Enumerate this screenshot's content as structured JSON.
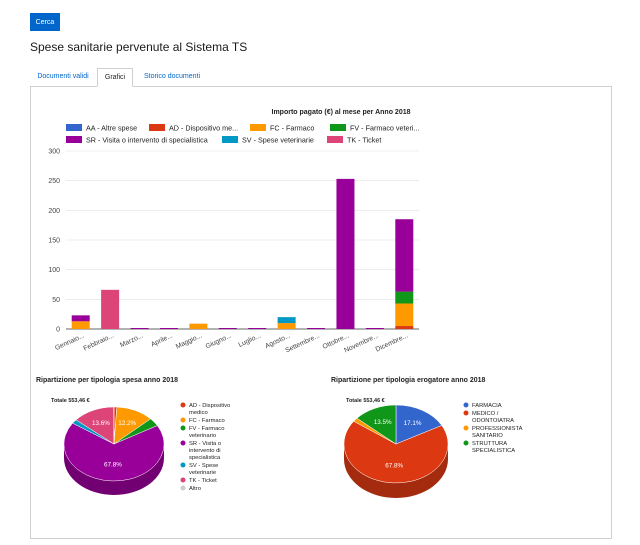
{
  "header": {
    "search_label": "Cerca",
    "page_title": "Spese sanitarie pervenute al Sistema TS"
  },
  "tabs": [
    {
      "label": "Documenti validi"
    },
    {
      "label": "Grafici"
    },
    {
      "label": "Storico documenti"
    }
  ],
  "active_tab": "Grafici",
  "colors": {
    "AA": "#3366cc",
    "AD": "#dc3912",
    "FC": "#ff9900",
    "FV": "#109618",
    "SR": "#990099",
    "SV": "#0099c6",
    "TK": "#dd4477",
    "Altro": "#cccccc",
    "primary": "#0066cc"
  },
  "chart_data": [
    {
      "type": "bar",
      "stacked": true,
      "title": "Importo pagato (€) al mese per Anno 2018",
      "categories": [
        "Gennaio...",
        "Febbraio...",
        "Marzo...",
        "Aprile...",
        "Maggio...",
        "Giugno...",
        "Luglio...",
        "Agosto...",
        "Settembre...",
        "Ottobre...",
        "Novembre...",
        "Dicembre..."
      ],
      "ylim": [
        0,
        300
      ],
      "yticks": [
        0,
        50,
        100,
        150,
        200,
        250,
        300
      ],
      "legend_position": "top",
      "series": [
        {
          "key": "AA",
          "name": "AA - Altre spese",
          "values": [
            0,
            0,
            0,
            0,
            0,
            0,
            0,
            0,
            0,
            0,
            0,
            0
          ]
        },
        {
          "key": "AD",
          "name": "AD - Dispositivo me...",
          "values": [
            0,
            0,
            0,
            0,
            0,
            0,
            0,
            0,
            0,
            0,
            0,
            5
          ]
        },
        {
          "key": "FC",
          "name": "FC - Farmaco",
          "values": [
            13,
            0,
            0,
            0,
            9,
            0,
            0,
            10,
            0,
            0,
            0,
            38
          ]
        },
        {
          "key": "FV",
          "name": "FV - Farmaco veteri...",
          "values": [
            0,
            0,
            0,
            0,
            0,
            0,
            0,
            0,
            0,
            0,
            0,
            20
          ]
        },
        {
          "key": "SR",
          "name": "SR - Visita o intervento di specialistica",
          "values": [
            10,
            0,
            0,
            0,
            0,
            0,
            0,
            0,
            0,
            253,
            0,
            122
          ]
        },
        {
          "key": "SV",
          "name": "SV - Spese veterinarie",
          "values": [
            0,
            0,
            0,
            0,
            0,
            0,
            0,
            10,
            0,
            0,
            0,
            0
          ]
        },
        {
          "key": "TK",
          "name": "TK - Ticket",
          "values": [
            0,
            66,
            0,
            0,
            0,
            0,
            0,
            0,
            0,
            0,
            0,
            0
          ]
        }
      ]
    },
    {
      "type": "pie",
      "title": "Ripartizione per tipologia spesa anno 2018",
      "total_label": "Totale 553,46 €",
      "slices": [
        {
          "key": "AD",
          "name": "AD - Dispositivo medico",
          "value": 0.9,
          "label": ""
        },
        {
          "key": "FC",
          "name": "FC - Farmaco",
          "value": 12.2,
          "label": "12.2%"
        },
        {
          "key": "FV",
          "name": "FV - Farmaco veterinario",
          "value": 3.6,
          "label": ""
        },
        {
          "key": "SR",
          "name": "SR - Visita o intervento di specialistica",
          "value": 67.8,
          "label": "67.8%"
        },
        {
          "key": "SV",
          "name": "SV - Spese veterinarie",
          "value": 1.8,
          "label": ""
        },
        {
          "key": "TK",
          "name": "TK - Ticket",
          "value": 13.6,
          "label": "13.6%"
        },
        {
          "key": "Altro",
          "name": "Altro",
          "value": 0.1,
          "label": ""
        }
      ]
    },
    {
      "type": "pie",
      "title": "Ripartizione per tipologia erogatore anno 2018",
      "total_label": "Totale 553,46 €",
      "slices": [
        {
          "key": "FARMACIA",
          "name": "FARMACIA",
          "value": 17.1,
          "label": "17.1%",
          "color": "#3366cc"
        },
        {
          "key": "MEDICO",
          "name": "MEDICO / ODONTOIATRA",
          "value": 67.8,
          "label": "67.8%",
          "color": "#dc3912"
        },
        {
          "key": "PROF",
          "name": "PROFESSIONISTA SANITARIO",
          "value": 1.6,
          "label": "",
          "color": "#ff9900"
        },
        {
          "key": "STRUTTURA",
          "name": "STRUTTURA SPECIALISTICA",
          "value": 13.5,
          "label": "13.5%",
          "color": "#109618"
        }
      ]
    }
  ]
}
